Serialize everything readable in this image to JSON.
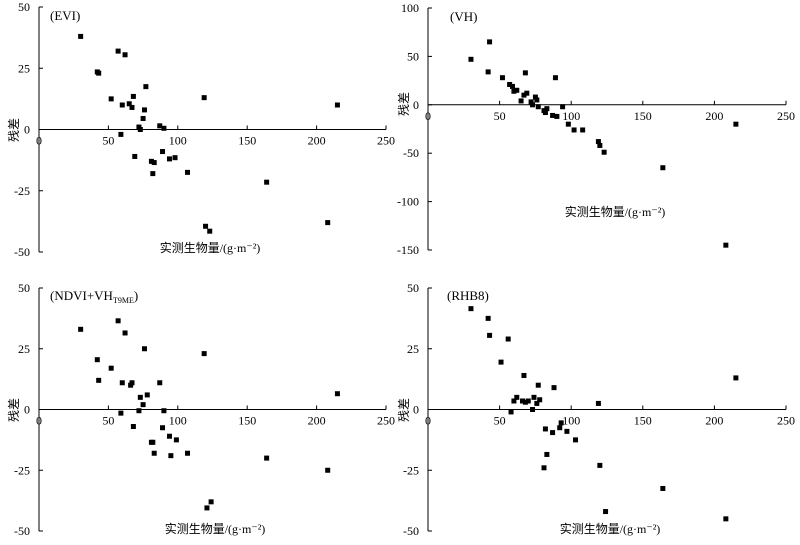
{
  "chart_data": [
    {
      "type": "scatter",
      "title": "(EVI)",
      "title_parts": [],
      "xlabel": "实测生物量/(g·m⁻²)",
      "ylabel": "残差",
      "xlim": [
        0,
        250
      ],
      "ylim": [
        -50,
        50
      ],
      "xticks": [
        "0",
        "50",
        "100",
        "150",
        "200",
        "250"
      ],
      "yticks": [
        "50",
        "25",
        "0",
        "-25",
        "-50"
      ],
      "marker_color": "#000000",
      "x": [
        30,
        42,
        43,
        52,
        57,
        59,
        60,
        62,
        65,
        67,
        68,
        69,
        72,
        73,
        75,
        76,
        77,
        81,
        82,
        83,
        87,
        89,
        90,
        94,
        98,
        107,
        119,
        120,
        123,
        164,
        208,
        215
      ],
      "y": [
        38,
        23.5,
        23,
        12.5,
        32,
        -2,
        10,
        30.5,
        10.5,
        9,
        13.5,
        -11,
        1,
        0,
        4.5,
        8,
        17.5,
        -13,
        -18,
        -13.5,
        1.5,
        -9,
        0.5,
        -12,
        -11.5,
        -17.5,
        13,
        -39.5,
        -41.5,
        -21.5,
        -38,
        10
      ]
    },
    {
      "type": "scatter",
      "title": "(VH)",
      "title_parts": [],
      "xlabel": "实测生物量/(g·m⁻²)",
      "ylabel": "残差",
      "xlim": [
        0,
        250
      ],
      "ylim": [
        -150,
        100
      ],
      "xticks": [
        "0",
        "50",
        "100",
        "150",
        "200",
        "250"
      ],
      "yticks": [
        "100",
        "50",
        "0",
        "-50",
        "-100",
        "-150"
      ],
      "marker_color": "#000000",
      "x": [
        30,
        42,
        43,
        52,
        57,
        59,
        60,
        62,
        65,
        67,
        68,
        69,
        72,
        73,
        75,
        76,
        77,
        81,
        82,
        83,
        87,
        89,
        90,
        94,
        98,
        102,
        108,
        119,
        120,
        123,
        164,
        208,
        215
      ],
      "y": [
        47,
        34,
        65,
        28,
        21,
        19,
        14,
        15,
        4,
        10,
        33,
        12,
        3,
        0,
        8,
        5,
        -2,
        -6,
        -8,
        -4,
        -11,
        28,
        -12,
        -2,
        -20,
        -26,
        -26,
        -38,
        -42,
        -49,
        -65,
        -145,
        -20
      ]
    },
    {
      "type": "scatter",
      "title": "",
      "title_parts": [
        "(NDVI+VH",
        "T9ME",
        ")"
      ],
      "xlabel": "实测生物量/(g·m⁻²)",
      "ylabel": "残差",
      "xlim": [
        0,
        250
      ],
      "ylim": [
        -50,
        50
      ],
      "xticks": [
        "0",
        "50",
        "100",
        "150",
        "200",
        "250"
      ],
      "yticks": [
        "50",
        "25",
        "0",
        "-25",
        "-50"
      ],
      "marker_color": "#000000",
      "x": [
        30,
        42,
        43,
        52,
        57,
        59,
        60,
        62,
        66,
        67,
        68,
        72,
        73,
        75,
        76,
        78,
        81,
        82,
        83,
        87,
        89,
        90,
        94,
        95,
        99,
        107,
        119,
        121,
        124,
        164,
        208,
        215
      ],
      "y": [
        33,
        20.5,
        12,
        17,
        36.5,
        -1.5,
        11,
        31.5,
        10,
        11,
        -7,
        -0.5,
        5,
        2,
        25,
        6,
        -13.5,
        -13.5,
        -18,
        11,
        -7.5,
        -0.5,
        -11,
        -19,
        -12.5,
        -18,
        23,
        -40.5,
        -38,
        -20,
        -25,
        6.5
      ]
    },
    {
      "type": "scatter",
      "title": "(RHB8)",
      "title_parts": [],
      "xlabel": "实测生物量/(g·m⁻²)",
      "ylabel": "残差",
      "xlim": [
        0,
        250
      ],
      "ylim": [
        -50,
        50
      ],
      "xticks": [
        "0",
        "50",
        "100",
        "150",
        "200",
        "250"
      ],
      "yticks": [
        "50",
        "25",
        "0",
        "-25",
        "-50"
      ],
      "marker_color": "#000000",
      "x": [
        30,
        42,
        43,
        51,
        56,
        58,
        60,
        62,
        66,
        67,
        68,
        70,
        73,
        74,
        76,
        77,
        78,
        81,
        82,
        83,
        87,
        88,
        92,
        93,
        97,
        103,
        119,
        120,
        124,
        164,
        208,
        215
      ],
      "y": [
        41.5,
        37.5,
        30.5,
        19.5,
        29,
        -1,
        3.5,
        5,
        3.5,
        14,
        3,
        3.5,
        0,
        5,
        2.5,
        10,
        4,
        -24,
        -8,
        -18.5,
        -9.5,
        9,
        -7.5,
        -5.5,
        -9,
        -12.5,
        2.5,
        -23,
        -42,
        -32.5,
        -45,
        13
      ]
    }
  ]
}
